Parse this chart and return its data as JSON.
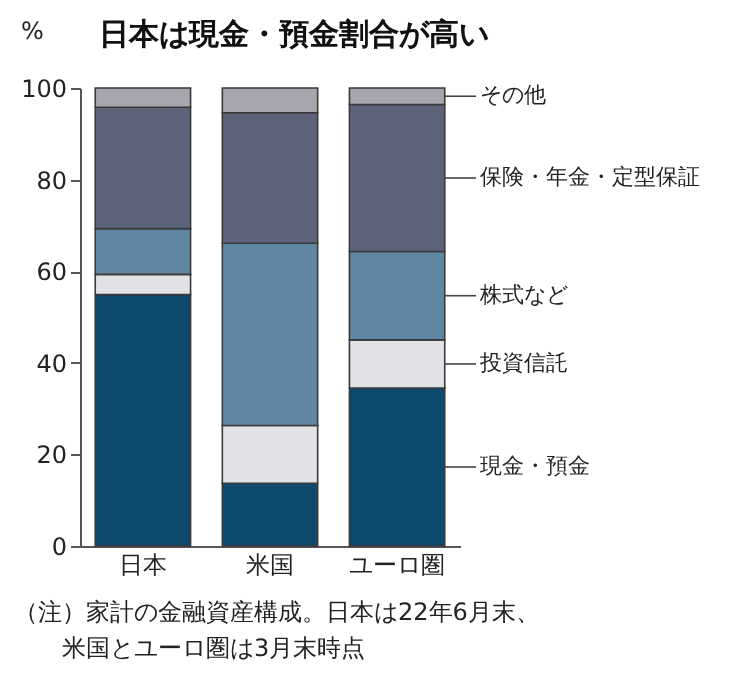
{
  "chart_data": {
    "type": "bar",
    "stacked": true,
    "title": "日本は現金・預金割合が高い",
    "ylabel": "%",
    "categories": [
      "日本",
      "米国",
      "ユーロ圏"
    ],
    "series": [
      {
        "name": "現金・預金",
        "color": "#0e4a6c",
        "values": [
          54.9,
          13.7,
          34.5
        ]
      },
      {
        "name": "投資信託",
        "color": "#e1e2e6",
        "values": [
          4.4,
          12.6,
          10.5
        ]
      },
      {
        "name": "株式など",
        "color": "#5f87a4",
        "values": [
          10.0,
          39.8,
          19.3
        ]
      },
      {
        "name": "保険・年金・定型保証",
        "color": "#5d6479",
        "values": [
          26.5,
          28.5,
          32.1
        ]
      },
      {
        "name": "その他",
        "color": "#a6a6ae",
        "values": [
          4.2,
          5.4,
          3.6
        ]
      }
    ],
    "ylim": [
      0,
      100
    ],
    "yticks": [
      0,
      20,
      40,
      60,
      80,
      100
    ],
    "grid": false,
    "legend": "right",
    "annotations": [
      "（注）家計の金融資産構成。日本は22年6月末、",
      "米国とユーロ圏は3月末時点"
    ]
  }
}
